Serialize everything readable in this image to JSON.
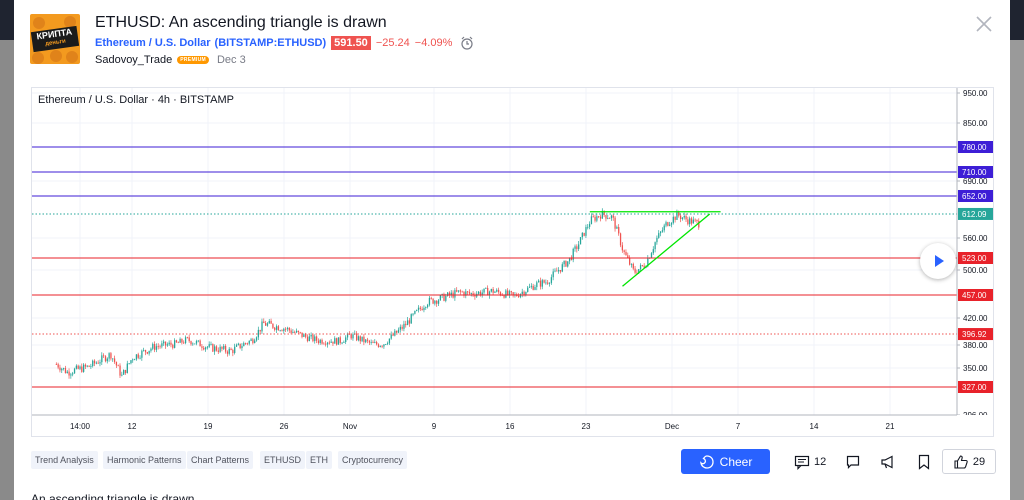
{
  "idea": {
    "title": "ETHUSD: An ascending triangle is drawn",
    "symbol_name": "Ethereum / U.S. Dollar",
    "symbol_ticker": "(BITSTAMP:ETHUSD)",
    "price": "591.50",
    "change": "−25.24",
    "change_pct": "−4.09%",
    "author": "Sadovoy_Trade",
    "author_badge": "PREMIUM",
    "date": "Dec 3",
    "avatar_text": "КРИПТА",
    "avatar_subtext": "деньги",
    "description_preview": "An ascending triangle is drawn"
  },
  "tags": [
    "Trend Analysis",
    "Harmonic Patterns",
    "Chart Patterns",
    "ETHUSD",
    "ETH",
    "Cryptocurrency"
  ],
  "actions": {
    "cheer_label": "Cheer",
    "comments_count": "12",
    "likes_count": "29"
  },
  "icons": [
    "close-icon",
    "alarm-icon",
    "play-icon",
    "cheer-icon",
    "comment-icon",
    "flag-icon",
    "megaphone-icon",
    "bookmark-icon",
    "thumbs-up-icon"
  ],
  "colors": {
    "accent": "#2962ff",
    "down": "#ef5350",
    "up": "#26a69a",
    "premium": "#ff9800"
  },
  "chart_data": {
    "type": "candlestick",
    "legend": "Ethereum / U.S. Dollar · 4h · BITSTAMP",
    "y_tick_labels": [
      "950.00",
      "850.00",
      "690.00",
      "560.00",
      "500.00",
      "420.00",
      "380.00",
      "350.00",
      "296.00"
    ],
    "x_tick_labels": [
      "14:00",
      "12",
      "19",
      "26",
      "Nov",
      "9",
      "16",
      "23",
      "Dec",
      "7",
      "14",
      "21"
    ],
    "ylim": [
      296,
      950
    ],
    "price_levels": [
      {
        "value": 780.0,
        "label": "780.00",
        "color": "#3d1ed6",
        "style": "solid"
      },
      {
        "value": 710.0,
        "label": "710.00",
        "color": "#3d1ed6",
        "style": "solid"
      },
      {
        "value": 652.0,
        "label": "652.00",
        "color": "#3d1ed6",
        "style": "solid"
      },
      {
        "value": 612.09,
        "label": "612.09",
        "color": "#26a69a",
        "style": "dotted"
      },
      {
        "value": 523.0,
        "label": "523.00",
        "color": "#e8222a",
        "style": "solid"
      },
      {
        "value": 457.0,
        "label": "457.00",
        "color": "#e8222a",
        "style": "solid"
      },
      {
        "value": 396.92,
        "label": "396.92",
        "color": "#ef5350",
        "style": "dotted"
      },
      {
        "value": 327.0,
        "label": "327.00",
        "color": "#e8222a",
        "style": "solid"
      }
    ],
    "price_path": [
      {
        "date": "Oct 5",
        "price": 355
      },
      {
        "date": "Oct 6",
        "price": 345
      },
      {
        "date": "Oct 8",
        "price": 352
      },
      {
        "date": "Oct 10",
        "price": 368
      },
      {
        "date": "Oct 11",
        "price": 340
      },
      {
        "date": "Oct 12",
        "price": 364
      },
      {
        "date": "Oct 14",
        "price": 378
      },
      {
        "date": "Oct 16",
        "price": 382
      },
      {
        "date": "Oct 17",
        "price": 388
      },
      {
        "date": "Oct 19",
        "price": 377
      },
      {
        "date": "Oct 21",
        "price": 372
      },
      {
        "date": "Oct 23",
        "price": 388
      },
      {
        "date": "Oct 24",
        "price": 412
      },
      {
        "date": "Oct 26",
        "price": 405
      },
      {
        "date": "Oct 28",
        "price": 392
      },
      {
        "date": "Oct 29",
        "price": 387
      },
      {
        "date": "Oct 31",
        "price": 386
      },
      {
        "date": "Nov 1",
        "price": 395
      },
      {
        "date": "Nov 3",
        "price": 381
      },
      {
        "date": "Nov 4",
        "price": 382
      },
      {
        "date": "Nov 6",
        "price": 410
      },
      {
        "date": "Nov 8",
        "price": 446
      },
      {
        "date": "Nov 9",
        "price": 450
      },
      {
        "date": "Nov 11",
        "price": 462
      },
      {
        "date": "Nov 12",
        "price": 459
      },
      {
        "date": "Nov 14",
        "price": 464
      },
      {
        "date": "Nov 16",
        "price": 455
      },
      {
        "date": "Nov 18",
        "price": 475
      },
      {
        "date": "Nov 19",
        "price": 480
      },
      {
        "date": "Nov 21",
        "price": 518
      },
      {
        "date": "Nov 22",
        "price": 552
      },
      {
        "date": "Nov 23",
        "price": 598
      },
      {
        "date": "Nov 24",
        "price": 612
      },
      {
        "date": "Nov 25",
        "price": 605
      },
      {
        "date": "Nov 26",
        "price": 536
      },
      {
        "date": "Nov 27",
        "price": 496
      },
      {
        "date": "Nov 28",
        "price": 510
      },
      {
        "date": "Nov 29",
        "price": 555
      },
      {
        "date": "Nov 30",
        "price": 592
      },
      {
        "date": "Dec 1",
        "price": 610
      },
      {
        "date": "Dec 2",
        "price": 598
      },
      {
        "date": "Dec 3",
        "price": 591
      }
    ],
    "triangle": {
      "resistance": [
        {
          "date": "Nov 23",
          "price": 617
        },
        {
          "date": "Dec 5",
          "price": 617
        }
      ],
      "support": [
        {
          "date": "Nov 26",
          "price": 472
        },
        {
          "date": "Dec 4",
          "price": 612
        }
      ]
    }
  }
}
